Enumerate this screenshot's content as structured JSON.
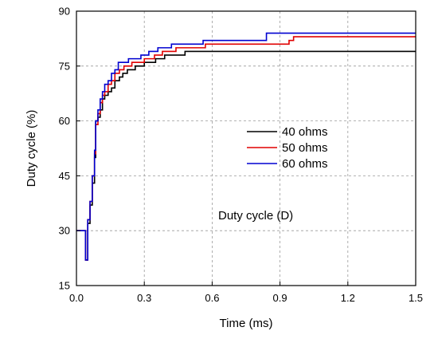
{
  "chart_data": {
    "type": "line",
    "title": "",
    "xlabel": "Time (ms)",
    "ylabel": "Duty cycle (%)",
    "xlim": [
      0.0,
      1.5
    ],
    "ylim": [
      15,
      90
    ],
    "x_ticks": [
      "0.0",
      "0.3",
      "0.6",
      "0.9",
      "1.2",
      "1.5"
    ],
    "y_ticks": [
      "15",
      "30",
      "45",
      "60",
      "75",
      "90"
    ],
    "grid": true,
    "legend_position": "right-middle",
    "annotation": "Duty cycle (D)",
    "series": [
      {
        "name": "40 ohms",
        "color": "#000000",
        "step": true,
        "points": [
          [
            0.0,
            30
          ],
          [
            0.04,
            30
          ],
          [
            0.04,
            22
          ],
          [
            0.05,
            22
          ],
          [
            0.05,
            32
          ],
          [
            0.06,
            32
          ],
          [
            0.06,
            37
          ],
          [
            0.07,
            37
          ],
          [
            0.07,
            43
          ],
          [
            0.08,
            43
          ],
          [
            0.08,
            50
          ],
          [
            0.085,
            50
          ],
          [
            0.085,
            60
          ],
          [
            0.095,
            60
          ],
          [
            0.095,
            61
          ],
          [
            0.105,
            61
          ],
          [
            0.105,
            63
          ],
          [
            0.115,
            63
          ],
          [
            0.115,
            66
          ],
          [
            0.125,
            66
          ],
          [
            0.125,
            67
          ],
          [
            0.14,
            67
          ],
          [
            0.14,
            68
          ],
          [
            0.155,
            68
          ],
          [
            0.155,
            69
          ],
          [
            0.17,
            69
          ],
          [
            0.17,
            71
          ],
          [
            0.19,
            71
          ],
          [
            0.19,
            72
          ],
          [
            0.205,
            72
          ],
          [
            0.205,
            73
          ],
          [
            0.225,
            73
          ],
          [
            0.225,
            74
          ],
          [
            0.26,
            74
          ],
          [
            0.26,
            75
          ],
          [
            0.3,
            75
          ],
          [
            0.3,
            76
          ],
          [
            0.35,
            76
          ],
          [
            0.35,
            77
          ],
          [
            0.39,
            77
          ],
          [
            0.39,
            78
          ],
          [
            0.48,
            78
          ],
          [
            0.48,
            79
          ],
          [
            1.5,
            79
          ]
        ]
      },
      {
        "name": "50 ohms",
        "color": "#e00000",
        "step": true,
        "points": [
          [
            0.0,
            30
          ],
          [
            0.04,
            30
          ],
          [
            0.04,
            22
          ],
          [
            0.05,
            22
          ],
          [
            0.05,
            33
          ],
          [
            0.06,
            33
          ],
          [
            0.06,
            38
          ],
          [
            0.07,
            38
          ],
          [
            0.07,
            45
          ],
          [
            0.08,
            45
          ],
          [
            0.08,
            51
          ],
          [
            0.085,
            51
          ],
          [
            0.085,
            59
          ],
          [
            0.095,
            59
          ],
          [
            0.095,
            62
          ],
          [
            0.105,
            62
          ],
          [
            0.105,
            65
          ],
          [
            0.115,
            65
          ],
          [
            0.115,
            67
          ],
          [
            0.125,
            67
          ],
          [
            0.125,
            68
          ],
          [
            0.14,
            68
          ],
          [
            0.14,
            70
          ],
          [
            0.155,
            70
          ],
          [
            0.155,
            71
          ],
          [
            0.17,
            71
          ],
          [
            0.17,
            73
          ],
          [
            0.19,
            73
          ],
          [
            0.19,
            74
          ],
          [
            0.21,
            74
          ],
          [
            0.21,
            75
          ],
          [
            0.245,
            75
          ],
          [
            0.245,
            76
          ],
          [
            0.3,
            76
          ],
          [
            0.3,
            77
          ],
          [
            0.345,
            77
          ],
          [
            0.345,
            78
          ],
          [
            0.38,
            78
          ],
          [
            0.38,
            79
          ],
          [
            0.44,
            79
          ],
          [
            0.44,
            80
          ],
          [
            0.57,
            80
          ],
          [
            0.57,
            81
          ],
          [
            0.94,
            81
          ],
          [
            0.94,
            82
          ],
          [
            0.96,
            82
          ],
          [
            0.96,
            83
          ],
          [
            1.5,
            83
          ]
        ]
      },
      {
        "name": "60 ohms",
        "color": "#0000d0",
        "step": true,
        "points": [
          [
            0.0,
            30
          ],
          [
            0.04,
            30
          ],
          [
            0.04,
            22
          ],
          [
            0.05,
            22
          ],
          [
            0.05,
            33
          ],
          [
            0.06,
            33
          ],
          [
            0.06,
            38
          ],
          [
            0.07,
            38
          ],
          [
            0.07,
            45
          ],
          [
            0.08,
            45
          ],
          [
            0.08,
            52
          ],
          [
            0.085,
            52
          ],
          [
            0.085,
            60
          ],
          [
            0.095,
            60
          ],
          [
            0.095,
            63
          ],
          [
            0.105,
            63
          ],
          [
            0.105,
            66
          ],
          [
            0.115,
            66
          ],
          [
            0.115,
            68
          ],
          [
            0.125,
            68
          ],
          [
            0.125,
            70
          ],
          [
            0.14,
            70
          ],
          [
            0.14,
            71
          ],
          [
            0.155,
            71
          ],
          [
            0.155,
            73
          ],
          [
            0.17,
            73
          ],
          [
            0.17,
            74
          ],
          [
            0.185,
            74
          ],
          [
            0.185,
            76
          ],
          [
            0.23,
            76
          ],
          [
            0.23,
            77
          ],
          [
            0.285,
            77
          ],
          [
            0.285,
            78
          ],
          [
            0.32,
            78
          ],
          [
            0.32,
            79
          ],
          [
            0.36,
            79
          ],
          [
            0.36,
            80
          ],
          [
            0.42,
            80
          ],
          [
            0.42,
            81
          ],
          [
            0.56,
            81
          ],
          [
            0.56,
            82
          ],
          [
            0.84,
            82
          ],
          [
            0.84,
            84
          ],
          [
            1.5,
            84
          ]
        ]
      }
    ]
  }
}
